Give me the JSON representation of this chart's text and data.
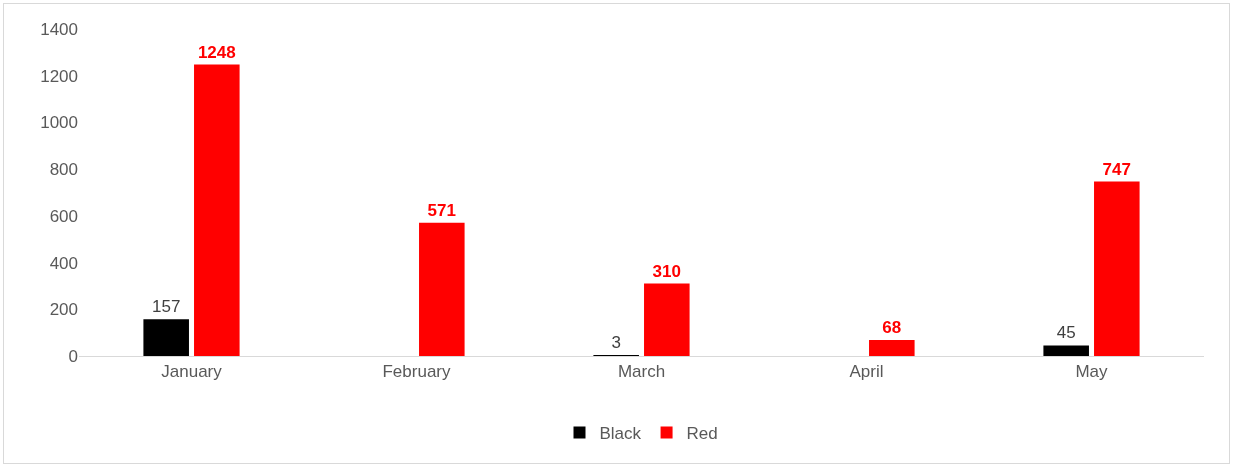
{
  "chart_data": {
    "type": "bar",
    "categories": [
      "January",
      "February",
      "March",
      "April",
      "May"
    ],
    "series": [
      {
        "name": "Black",
        "color": "#000000",
        "values": [
          157,
          null,
          3,
          null,
          45
        ]
      },
      {
        "name": "Red",
        "color": "#ff0000",
        "values": [
          1248,
          571,
          310,
          68,
          747
        ]
      }
    ],
    "ylim": [
      0,
      1400
    ],
    "yticks": [
      0,
      200,
      400,
      600,
      800,
      1000,
      1200,
      1400
    ],
    "grid": false,
    "legend": "bottom",
    "data_labels": true
  }
}
